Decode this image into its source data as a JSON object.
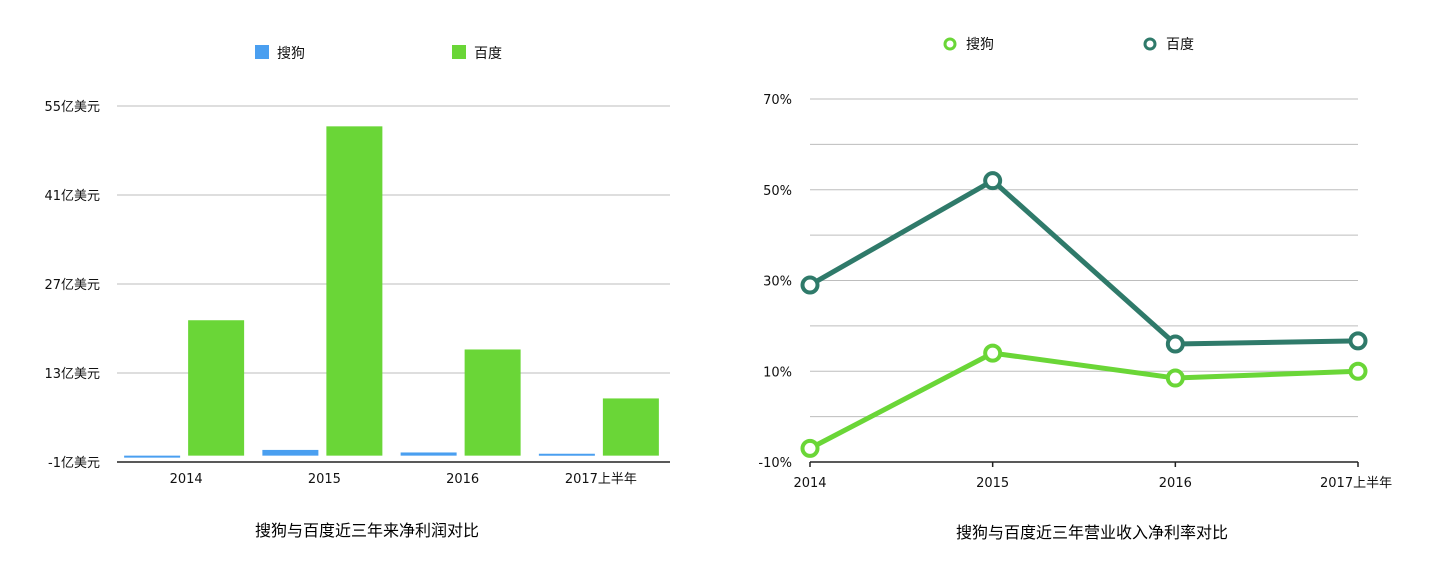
{
  "chart_data": [
    {
      "type": "bar",
      "title": "搜狗与百度近三年来净利润对比",
      "categories": [
        "2014",
        "2015",
        "2016",
        "2017上半年"
      ],
      "ylim": [
        -1,
        55
      ],
      "yticks": [
        -1,
        13,
        27,
        41,
        55
      ],
      "ytick_labels": [
        "-1亿美元",
        "13亿美元",
        "27亿美元",
        "41亿美元",
        "55亿美元"
      ],
      "grid": true,
      "legend_position": "top",
      "series": [
        {
          "name": "搜狗",
          "color": "#4a9ff0",
          "values": [
            -0.3,
            0.9,
            0.5,
            0.3
          ]
        },
        {
          "name": "百度",
          "color": "#6ad637",
          "values": [
            21.3,
            51.8,
            16.7,
            9.0
          ]
        }
      ]
    },
    {
      "type": "line",
      "title": "搜狗与百度近三年营业收入净利率对比",
      "categories": [
        "2014",
        "2015",
        "2016",
        "2017上半年"
      ],
      "ylim": [
        -10,
        70
      ],
      "yticks": [
        -10,
        10,
        30,
        50,
        70
      ],
      "ytick_labels": [
        "-10%",
        "10%",
        "30%",
        "50%",
        "70%"
      ],
      "grid": true,
      "legend_position": "top",
      "series": [
        {
          "name": "搜狗",
          "color": "#6ad637",
          "values": [
            -7,
            14,
            8.5,
            10
          ]
        },
        {
          "name": "百度",
          "color": "#2f7a6a",
          "values": [
            29,
            52,
            16,
            16.7
          ]
        }
      ]
    }
  ]
}
